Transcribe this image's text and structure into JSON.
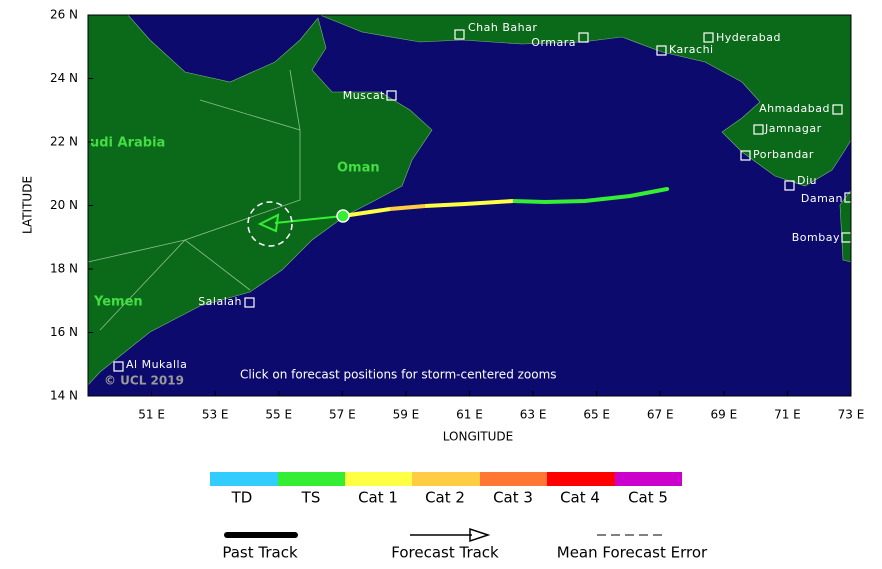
{
  "map": {
    "xlabel": "LONGITUDE",
    "ylabel": "LATITUDE",
    "xlim": [
      49,
      73
    ],
    "ylim": [
      14,
      26
    ],
    "xticks": [
      {
        "value": 51,
        "label": "51 E"
      },
      {
        "value": 53,
        "label": "53 E"
      },
      {
        "value": 55,
        "label": "55 E"
      },
      {
        "value": 57,
        "label": "57 E"
      },
      {
        "value": 59,
        "label": "59 E"
      },
      {
        "value": 61,
        "label": "61 E"
      },
      {
        "value": 63,
        "label": "63 E"
      },
      {
        "value": 65,
        "label": "65 E"
      },
      {
        "value": 67,
        "label": "67 E"
      },
      {
        "value": 69,
        "label": "69 E"
      },
      {
        "value": 71,
        "label": "71 E"
      },
      {
        "value": 73,
        "label": "73 E"
      }
    ],
    "yticks": [
      {
        "value": 14,
        "label": "14 N"
      },
      {
        "value": 16,
        "label": "16 N"
      },
      {
        "value": 18,
        "label": "18 N"
      },
      {
        "value": 20,
        "label": "20 N"
      },
      {
        "value": 22,
        "label": "22 N"
      },
      {
        "value": 24,
        "label": "24 N"
      },
      {
        "value": 26,
        "label": "26 N"
      }
    ],
    "countries": [
      "udi Arabia",
      "Oman",
      "Yemen"
    ],
    "cities": [
      "Chah Bahar",
      "Ormara",
      "Karachi",
      "Hyderabad",
      "Muscat",
      "Ahmadabad",
      "Jamnagar",
      "Porbandar",
      "Diu",
      "Daman",
      "Bombay",
      "Salalah",
      "Al Mukalla"
    ],
    "note": "Click on forecast positions for storm-centered zooms",
    "credit": "© UCL 2019"
  },
  "legend": {
    "intensity": [
      "TD",
      "TS",
      "Cat 1",
      "Cat 2",
      "Cat 3",
      "Cat 4",
      "Cat 5"
    ],
    "tracks": [
      "Past Track",
      "Forecast Track",
      "Mean Forecast Error"
    ]
  }
}
